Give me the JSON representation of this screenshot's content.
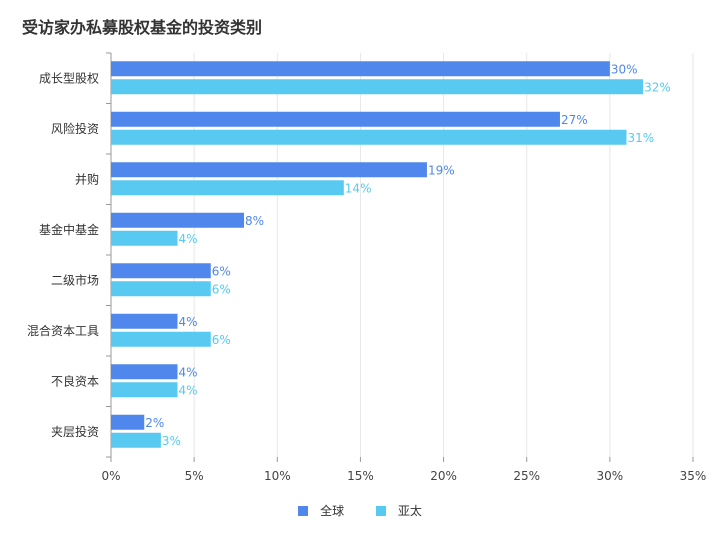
{
  "chart_data": {
    "type": "bar",
    "orientation": "horizontal",
    "title": "受访家办私募股权基金的投资类别",
    "categories": [
      "成长型股权",
      "风险投资",
      "并购",
      "基金中基金",
      "二级市场",
      "混合资本工具",
      "不良资本",
      "夹层投资"
    ],
    "series": [
      {
        "name": "全球",
        "values": [
          30,
          27,
          19,
          8,
          6,
          4,
          4,
          2
        ],
        "color": "#5087EC"
      },
      {
        "name": "亚太",
        "values": [
          32,
          31,
          14,
          4,
          6,
          6,
          4,
          3
        ],
        "color": "#58C9F0"
      }
    ],
    "xlim": [
      0,
      35
    ],
    "xticks": [
      "0%",
      "5%",
      "10%",
      "15%",
      "20%",
      "25%",
      "30%",
      "35%"
    ],
    "value_suffix": "%",
    "grid": true,
    "legend_position": "bottom"
  }
}
